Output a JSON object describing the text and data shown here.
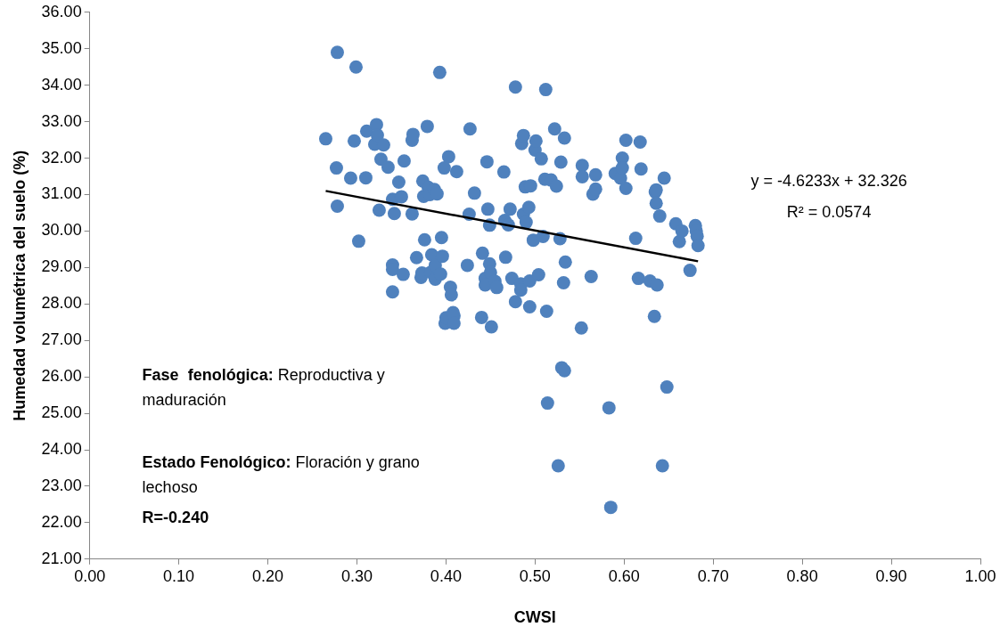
{
  "chart_data": {
    "type": "scatter",
    "xlabel": "CWSI",
    "ylabel": "Humedad volumétrica del suelo (%)",
    "xlim": [
      0,
      1
    ],
    "xticks": [
      {
        "value": 0,
        "label": "0.00"
      },
      {
        "value": 0.1,
        "label": "0.10"
      },
      {
        "value": 0.2,
        "label": "0.20"
      },
      {
        "value": 0.3,
        "label": "0.30"
      },
      {
        "value": 0.4,
        "label": "0.40"
      },
      {
        "value": 0.5,
        "label": "0.50"
      },
      {
        "value": 0.6,
        "label": "0.60"
      },
      {
        "value": 0.7,
        "label": "0.70"
      },
      {
        "value": 0.8,
        "label": "0.80"
      },
      {
        "value": 0.9,
        "label": "0.90"
      },
      {
        "value": 1,
        "label": "1.00"
      }
    ],
    "ylim": [
      21,
      36
    ],
    "yticks": [
      {
        "value": 21,
        "label": "21.00"
      },
      {
        "value": 22,
        "label": "22.00"
      },
      {
        "value": 23,
        "label": "23.00"
      },
      {
        "value": 24,
        "label": "24.00"
      },
      {
        "value": 25,
        "label": "25.00"
      },
      {
        "value": 26,
        "label": "26.00"
      },
      {
        "value": 27,
        "label": "27.00"
      },
      {
        "value": 28,
        "label": "28.00"
      },
      {
        "value": 29,
        "label": "29.00"
      },
      {
        "value": 30,
        "label": "30.00"
      },
      {
        "value": 31,
        "label": "31.00"
      },
      {
        "value": 32,
        "label": "32.00"
      },
      {
        "value": 33,
        "label": "33.00"
      },
      {
        "value": 34,
        "label": "34.00"
      },
      {
        "value": 35,
        "label": "35.00"
      },
      {
        "value": 36,
        "label": "36.00"
      }
    ],
    "grid": false,
    "legend": false,
    "series": [
      {
        "color": "#4f81bd",
        "marker": "circle",
        "x": [
          0.265,
          0.278,
          0.277,
          0.278,
          0.293,
          0.297,
          0.299,
          0.302,
          0.31,
          0.311,
          0.32,
          0.322,
          0.323,
          0.325,
          0.327,
          0.33,
          0.335,
          0.34,
          0.34,
          0.34,
          0.34,
          0.342,
          0.347,
          0.35,
          0.352,
          0.353,
          0.362,
          0.363,
          0.362,
          0.367,
          0.372,
          0.373,
          0.374,
          0.375,
          0.376,
          0.379,
          0.38,
          0.382,
          0.383,
          0.384,
          0.387,
          0.388,
          0.388,
          0.39,
          0.393,
          0.394,
          0.395,
          0.396,
          0.398,
          0.399,
          0.4,
          0.403,
          0.405,
          0.406,
          0.408,
          0.409,
          0.409,
          0.412,
          0.424,
          0.426,
          0.427,
          0.432,
          0.44,
          0.441,
          0.444,
          0.444,
          0.446,
          0.447,
          0.449,
          0.449,
          0.45,
          0.451,
          0.455,
          0.457,
          0.465,
          0.466,
          0.467,
          0.47,
          0.472,
          0.474,
          0.478,
          0.478,
          0.484,
          0.484,
          0.485,
          0.487,
          0.487,
          0.489,
          0.49,
          0.493,
          0.494,
          0.494,
          0.495,
          0.498,
          0.5,
          0.501,
          0.504,
          0.507,
          0.509,
          0.511,
          0.512,
          0.513,
          0.514,
          0.518,
          0.522,
          0.524,
          0.526,
          0.528,
          0.529,
          0.53,
          0.532,
          0.533,
          0.533,
          0.534,
          0.553,
          0.553,
          0.552,
          0.563,
          0.565,
          0.568,
          0.568,
          0.583,
          0.585,
          0.59,
          0.596,
          0.598,
          0.598,
          0.602,
          0.602,
          0.613,
          0.616,
          0.618,
          0.619,
          0.629,
          0.634,
          0.635,
          0.636,
          0.636,
          0.637,
          0.64,
          0.643,
          0.645,
          0.648,
          0.658,
          0.662,
          0.665,
          0.674,
          0.68,
          0.681,
          0.682,
          0.683
        ],
        "values": [
          32.53,
          34.9,
          31.73,
          30.68,
          31.45,
          32.47,
          34.5,
          29.72,
          31.46,
          32.74,
          32.38,
          32.92,
          32.63,
          30.57,
          31.97,
          32.36,
          31.75,
          30.87,
          29.07,
          28.95,
          28.33,
          30.48,
          31.34,
          30.94,
          28.81,
          31.92,
          32.49,
          32.65,
          30.47,
          29.27,
          28.73,
          28.85,
          31.37,
          30.95,
          29.76,
          32.87,
          31.2,
          31.0,
          28.87,
          29.35,
          31.14,
          29.06,
          28.68,
          31.02,
          34.35,
          28.82,
          29.82,
          29.31,
          31.73,
          27.47,
          27.62,
          32.04,
          28.46,
          28.25,
          27.76,
          27.67,
          27.47,
          31.63,
          29.06,
          30.46,
          32.8,
          31.04,
          27.63,
          29.39,
          28.7,
          28.52,
          31.9,
          30.6,
          29.1,
          30.16,
          28.86,
          27.37,
          28.62,
          28.45,
          31.62,
          30.29,
          29.28,
          30.17,
          30.6,
          28.7,
          33.95,
          28.06,
          28.55,
          28.38,
          32.4,
          32.62,
          30.46,
          31.21,
          30.24,
          30.65,
          28.63,
          27.92,
          31.24,
          29.75,
          32.22,
          32.47,
          28.8,
          31.98,
          29.85,
          31.42,
          33.88,
          27.8,
          25.28,
          31.4,
          32.8,
          31.23,
          23.56,
          29.79,
          31.89,
          26.25,
          28.58,
          26.17,
          32.55,
          29.15,
          31.8,
          31.49,
          27.34,
          28.75,
          31.01,
          31.15,
          31.54,
          25.15,
          22.42,
          31.58,
          31.45,
          32.0,
          31.73,
          32.49,
          31.17,
          29.8,
          28.7,
          32.44,
          31.7,
          28.63,
          27.66,
          31.07,
          31.13,
          30.76,
          28.52,
          30.41,
          23.56,
          31.45,
          25.72,
          30.2,
          29.71,
          30.0,
          28.92,
          30.15,
          30.0,
          29.86,
          29.6
        ]
      },
      {
        "type": "line",
        "color": "#000000",
        "marker": "none",
        "x": [
          0.265,
          0.683
        ],
        "values": [
          31.1,
          29.17
        ]
      }
    ],
    "annotations": [
      "y = -4.6233x + 32.326",
      "R² = 0.0574",
      "Fase  fenológica: Reproductiva y maduración",
      "Estado Fenológico: Floración y grano lechoso",
      "R=-0.240"
    ]
  }
}
